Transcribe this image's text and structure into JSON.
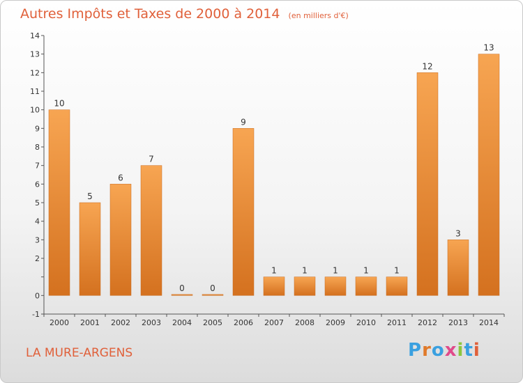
{
  "header": {
    "title": "Autres Impôts et Taxes de 2000 à 2014",
    "unit": "(en milliers d'€)"
  },
  "footer": {
    "commune": "LA MURE-ARGENS",
    "logo": "Proxiti",
    "logo_colors": [
      "#3aa0e0",
      "#e07a2a",
      "#3aa0e0",
      "#e04a8a",
      "#8cc63f",
      "#3aa0e0",
      "#e0603a"
    ]
  },
  "colors": {
    "bar_light": "#f7a552",
    "bar_dark": "#d4711f",
    "title": "#e0603a",
    "axis": "#555555"
  },
  "chart_data": {
    "type": "bar",
    "categories": [
      "2000",
      "2001",
      "2002",
      "2003",
      "2004",
      "2005",
      "2006",
      "2007",
      "2008",
      "2009",
      "2010",
      "2011",
      "2012",
      "2013",
      "2014"
    ],
    "values": [
      10,
      5,
      6,
      7,
      0,
      0,
      9,
      1,
      1,
      1,
      1,
      1,
      12,
      3,
      13
    ],
    "ylim": [
      -1,
      14
    ],
    "yticks": [
      -1,
      0,
      1,
      2,
      3,
      4,
      5,
      6,
      7,
      8,
      9,
      10,
      11,
      12,
      13,
      14
    ],
    "ytick_labels": [
      "-1",
      "0",
      "",
      "2",
      "3",
      "4",
      "5",
      "6",
      "7",
      "8",
      "9",
      "10",
      "11",
      "12",
      "13",
      "14"
    ],
    "grid": false,
    "title": "Autres Impôts et Taxes de 2000 à 2014",
    "ylabel": "",
    "xlabel": ""
  }
}
